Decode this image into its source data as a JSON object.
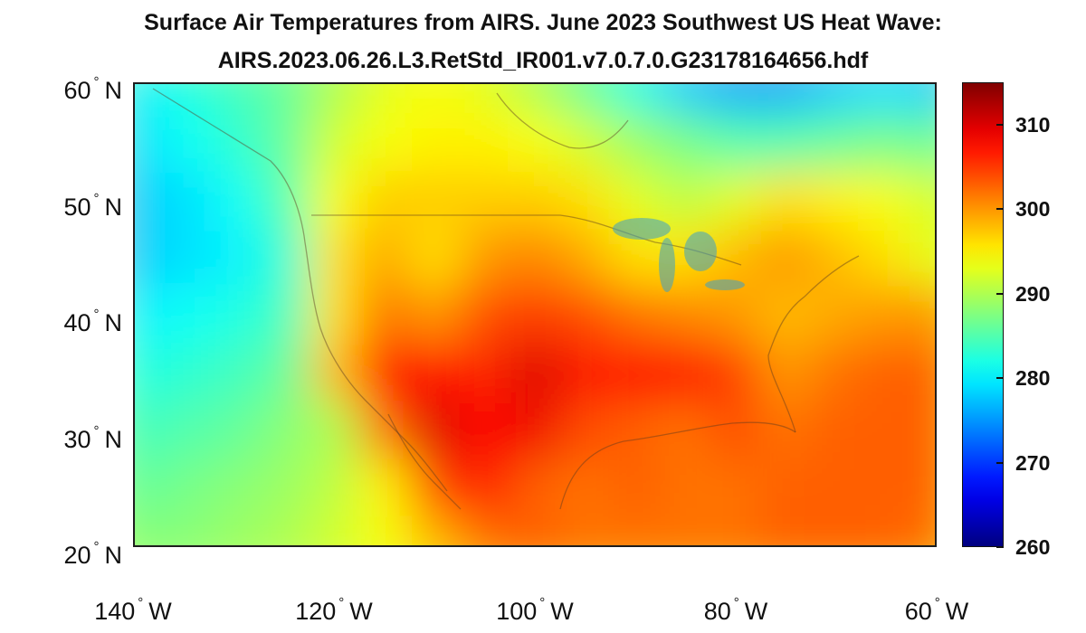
{
  "title": {
    "line1": "Surface Air Temperatures from AIRS. June 2023 Southwest US Heat Wave:",
    "line2": "AIRS.2023.06.26.L3.RetStd_IR001.v7.0.7.0.G23178164656.hdf"
  },
  "chart_data": {
    "type": "heatmap",
    "title": "Surface Air Temperatures from AIRS. June 2023 Southwest US Heat Wave: AIRS.2023.06.26.L3.RetStd_IR001.v7.0.7.0.G23178164656.hdf",
    "xlabel": "",
    "ylabel": "",
    "x_ticks": [
      {
        "value": -140,
        "label": "140",
        "hemisphere": "W"
      },
      {
        "value": -120,
        "label": "120",
        "hemisphere": "W"
      },
      {
        "value": -100,
        "label": "100",
        "hemisphere": "W"
      },
      {
        "value": -80,
        "label": "80",
        "hemisphere": "W"
      },
      {
        "value": -60,
        "label": "60",
        "hemisphere": "W"
      }
    ],
    "y_ticks": [
      {
        "value": 60,
        "label": "60",
        "hemisphere": "N"
      },
      {
        "value": 50,
        "label": "50",
        "hemisphere": "N"
      },
      {
        "value": 40,
        "label": "40",
        "hemisphere": "N"
      },
      {
        "value": 30,
        "label": "30",
        "hemisphere": "N"
      },
      {
        "value": 20,
        "label": "20",
        "hemisphere": "N"
      }
    ],
    "degree_symbol": "°",
    "colorbar": {
      "min": 260,
      "max": 315,
      "ticks": [
        "310",
        "300",
        "290",
        "280",
        "270",
        "260"
      ],
      "colormap": "jet",
      "orientation": "vertical",
      "placement": "right"
    },
    "grid": false,
    "lon_range": [
      -140,
      -60
    ],
    "lat_range": [
      20,
      60
    ],
    "lon_step": 5,
    "lat_step": 5,
    "lons": [
      -140,
      -135,
      -130,
      -125,
      -120,
      -115,
      -110,
      -105,
      -100,
      -95,
      -90,
      -85,
      -80,
      -75,
      -70,
      -65,
      -60
    ],
    "lats": [
      60,
      55,
      50,
      45,
      40,
      35,
      30,
      25,
      20
    ],
    "temperature_K": [
      [
        280,
        282,
        284,
        286,
        290,
        293,
        294,
        293,
        290,
        286,
        282,
        278,
        276,
        276,
        278,
        279,
        278
      ],
      [
        279,
        281,
        283,
        286,
        292,
        294,
        295,
        295,
        294,
        292,
        289,
        287,
        285,
        285,
        286,
        287,
        286
      ],
      [
        278,
        279,
        281,
        285,
        294,
        297,
        297,
        297,
        297,
        296,
        293,
        291,
        293,
        296,
        295,
        294,
        292
      ],
      [
        278,
        279,
        280,
        283,
        296,
        299,
        296,
        300,
        301,
        299,
        296,
        296,
        298,
        300,
        298,
        296,
        293
      ],
      [
        280,
        281,
        282,
        284,
        296,
        302,
        300,
        304,
        305,
        304,
        302,
        301,
        300,
        298,
        299,
        300,
        300
      ],
      [
        282,
        283,
        284,
        286,
        298,
        308,
        308,
        306,
        310,
        307,
        308,
        308,
        305,
        300,
        302,
        303,
        303
      ],
      [
        284,
        285,
        286,
        288,
        290,
        302,
        310,
        308,
        309,
        304,
        303,
        302,
        304,
        302,
        303,
        303,
        303
      ],
      [
        286,
        287,
        288,
        289,
        291,
        295,
        304,
        307,
        303,
        302,
        303,
        302,
        302,
        303,
        303,
        303,
        303
      ],
      [
        288,
        288,
        289,
        290,
        292,
        294,
        298,
        302,
        303,
        302,
        302,
        302,
        302,
        303,
        303,
        303,
        302
      ]
    ]
  }
}
